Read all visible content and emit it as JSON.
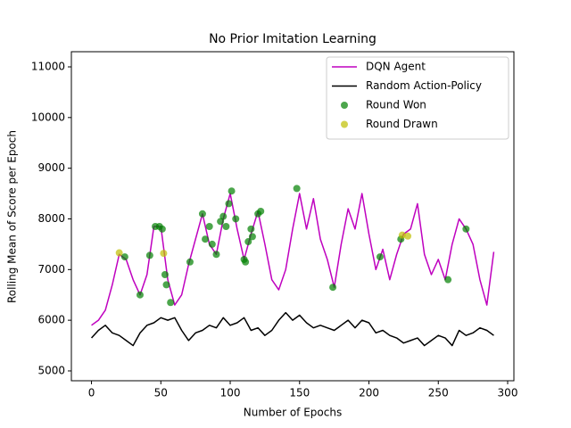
{
  "chart_data": {
    "type": "line",
    "title": "No Prior Imitation Learning",
    "x_label": "Number of Epochs",
    "y_label": "Rolling Mean of Score per Epoch",
    "xlim": [
      -14.5,
      304.5
    ],
    "ylim": [
      4806,
      11299
    ],
    "xticks": [
      0,
      50,
      100,
      150,
      200,
      250,
      300
    ],
    "yticks": [
      5000,
      6000,
      7000,
      8000,
      9000,
      10000,
      11000
    ],
    "legend": "upper right",
    "series": [
      {
        "name": "DQN Agent",
        "type": "line",
        "color": "#bf00bf",
        "x": [
          0,
          5,
          10,
          15,
          20,
          25,
          30,
          35,
          40,
          45,
          50,
          55,
          60,
          65,
          70,
          75,
          80,
          85,
          90,
          95,
          100,
          105,
          110,
          115,
          120,
          125,
          130,
          135,
          140,
          145,
          150,
          155,
          160,
          165,
          170,
          175,
          180,
          185,
          190,
          195,
          200,
          205,
          210,
          215,
          220,
          225,
          230,
          235,
          240,
          245,
          250,
          255,
          260,
          265,
          270,
          275,
          280,
          285,
          290
        ],
        "values": [
          5900,
          6000,
          6200,
          6700,
          7300,
          7200,
          6800,
          6500,
          6900,
          7850,
          7850,
          6800,
          6300,
          6500,
          7100,
          7600,
          8100,
          7500,
          7300,
          8000,
          8500,
          7800,
          7200,
          7700,
          8150,
          7500,
          6800,
          6600,
          7000,
          7800,
          8500,
          7800,
          8400,
          7600,
          7200,
          6650,
          7500,
          8200,
          7800,
          8500,
          7700,
          7000,
          7400,
          6800,
          7300,
          7700,
          7800,
          8300,
          7300,
          6900,
          7200,
          6800,
          7500,
          8000,
          7800,
          7500,
          6800,
          6300,
          7350
        ]
      },
      {
        "name": "Random Action-Policy",
        "type": "line",
        "color": "#000000",
        "x": [
          0,
          5,
          10,
          15,
          20,
          25,
          30,
          35,
          40,
          45,
          50,
          55,
          60,
          65,
          70,
          75,
          80,
          85,
          90,
          95,
          100,
          105,
          110,
          115,
          120,
          125,
          130,
          135,
          140,
          145,
          150,
          155,
          160,
          165,
          170,
          175,
          180,
          185,
          190,
          195,
          200,
          205,
          210,
          215,
          220,
          225,
          230,
          235,
          240,
          245,
          250,
          255,
          260,
          265,
          270,
          275,
          280,
          285,
          290
        ],
        "values": [
          5650,
          5800,
          5900,
          5750,
          5700,
          5600,
          5500,
          5750,
          5900,
          5950,
          6050,
          6000,
          6050,
          5800,
          5600,
          5750,
          5800,
          5900,
          5850,
          6050,
          5900,
          5950,
          6050,
          5800,
          5850,
          5700,
          5800,
          6000,
          6150,
          6000,
          6100,
          5950,
          5850,
          5900,
          5850,
          5800,
          5900,
          6000,
          5850,
          6000,
          5950,
          5750,
          5800,
          5700,
          5650,
          5550,
          5600,
          5650,
          5500,
          5600,
          5700,
          5650,
          5500,
          5800,
          5700,
          5750,
          5850,
          5800,
          5700
        ]
      },
      {
        "name": "Round Won",
        "type": "scatter",
        "color": "#008000",
        "x": [
          24,
          35,
          42,
          46,
          49,
          51,
          53,
          54,
          57,
          71,
          80,
          82,
          85,
          87,
          90,
          93,
          95,
          97,
          99,
          101,
          104,
          110,
          111,
          113,
          115,
          116,
          120,
          122,
          148,
          174,
          208,
          223,
          257,
          270
        ],
        "values": [
          7250,
          6500,
          7280,
          7850,
          7850,
          7800,
          6900,
          6700,
          6350,
          7150,
          8100,
          7600,
          7850,
          7500,
          7300,
          7950,
          8050,
          7850,
          8300,
          8550,
          8000,
          7200,
          7150,
          7550,
          7800,
          7650,
          8100,
          8150,
          8600,
          6650,
          7250,
          7600,
          6800,
          7800
        ]
      },
      {
        "name": "Round Drawn",
        "type": "scatter",
        "color": "#bfbf00",
        "x": [
          20,
          52,
          224,
          228
        ],
        "values": [
          7330,
          7320,
          7680,
          7660
        ]
      }
    ]
  }
}
